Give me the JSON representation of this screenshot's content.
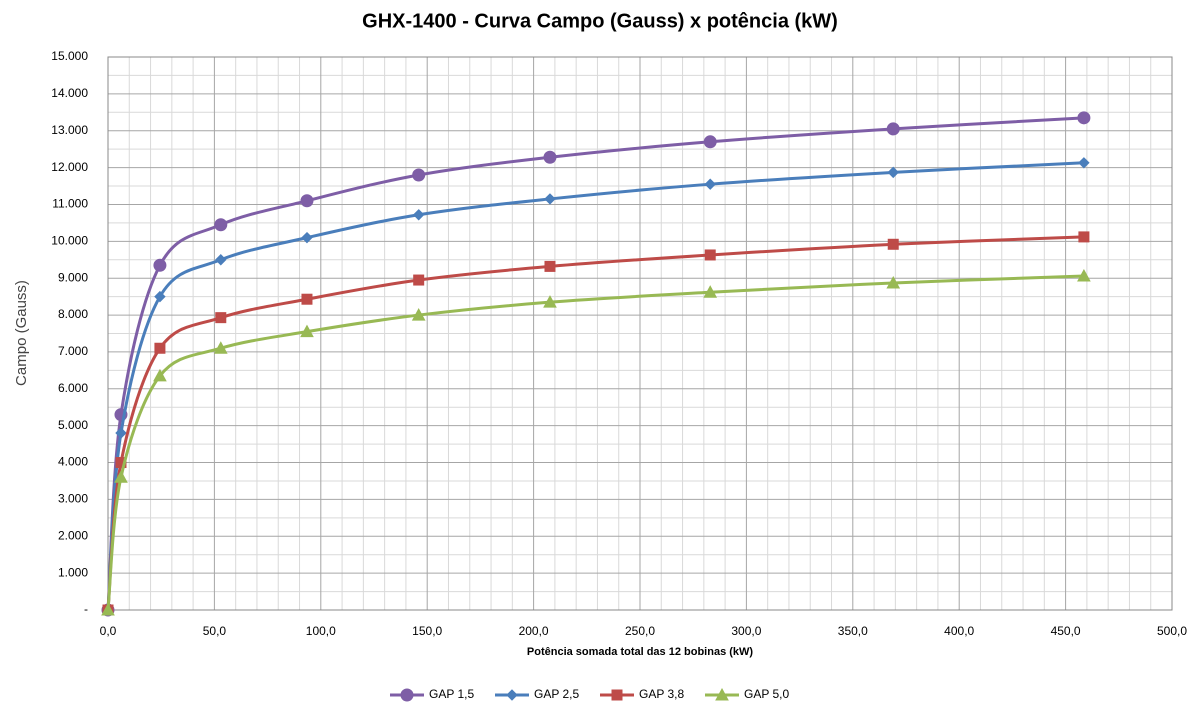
{
  "chart_data": {
    "type": "line",
    "title": "GHX-1400  - Curva Campo (Gauss) x potência (kW)",
    "x_label": "Potência somada total das 12 bobinas (kW)",
    "y_label": "Campo (Gauss)",
    "x": [
      0,
      6.1,
      24.4,
      53,
      93.5,
      146,
      207.7,
      283,
      369,
      458.6
    ],
    "series": [
      {
        "name": "GAP 1,5",
        "color": "#7e5ea6",
        "marker": "circle",
        "values": [
          0,
          5300,
          9350,
          10450,
          11100,
          11800,
          12280,
          12700,
          13050,
          13350
        ]
      },
      {
        "name": "GAP 2,5",
        "color": "#4a7ebb",
        "marker": "diamond",
        "values": [
          0,
          4800,
          8500,
          9500,
          10100,
          10720,
          11150,
          11550,
          11870,
          12130
        ]
      },
      {
        "name": "GAP 3,8",
        "color": "#be4b48",
        "marker": "square",
        "values": [
          0,
          4000,
          7100,
          7930,
          8430,
          8950,
          9320,
          9630,
          9920,
          10120
        ]
      },
      {
        "name": "GAP 5,0",
        "color": "#98b954",
        "marker": "triangle",
        "values": [
          0,
          3600,
          6350,
          7100,
          7550,
          8000,
          8350,
          8620,
          8870,
          9060
        ]
      }
    ],
    "xlim": [
      0,
      500
    ],
    "xticks": [
      {
        "value": 0,
        "label": "0,0"
      },
      {
        "value": 50,
        "label": "50,0"
      },
      {
        "value": 100,
        "label": "100,0"
      },
      {
        "value": 150,
        "label": "150,0"
      },
      {
        "value": 200,
        "label": "200,0"
      },
      {
        "value": 250,
        "label": "250,0"
      },
      {
        "value": 300,
        "label": "300,0"
      },
      {
        "value": 350,
        "label": "350,0"
      },
      {
        "value": 400,
        "label": "400,0"
      },
      {
        "value": 450,
        "label": "450,0"
      },
      {
        "value": 500,
        "label": "500,0"
      }
    ],
    "ylim": [
      0,
      15000
    ],
    "yticks": [
      {
        "value": 0,
        "label": "-"
      },
      {
        "value": 1000,
        "label": "1.000"
      },
      {
        "value": 2000,
        "label": "2.000"
      },
      {
        "value": 3000,
        "label": "3.000"
      },
      {
        "value": 4000,
        "label": "4.000"
      },
      {
        "value": 5000,
        "label": "5.000"
      },
      {
        "value": 6000,
        "label": "6.000"
      },
      {
        "value": 7000,
        "label": "7.000"
      },
      {
        "value": 8000,
        "label": "8.000"
      },
      {
        "value": 9000,
        "label": "9.000"
      },
      {
        "value": 10000,
        "label": "10.000"
      },
      {
        "value": 11000,
        "label": "11.000"
      },
      {
        "value": 12000,
        "label": "12.000"
      },
      {
        "value": 13000,
        "label": "13.000"
      },
      {
        "value": 14000,
        "label": "14.000"
      },
      {
        "value": 15000,
        "label": "15.000"
      }
    ],
    "grid": true,
    "minor_grid": true,
    "legend": "bottom"
  }
}
